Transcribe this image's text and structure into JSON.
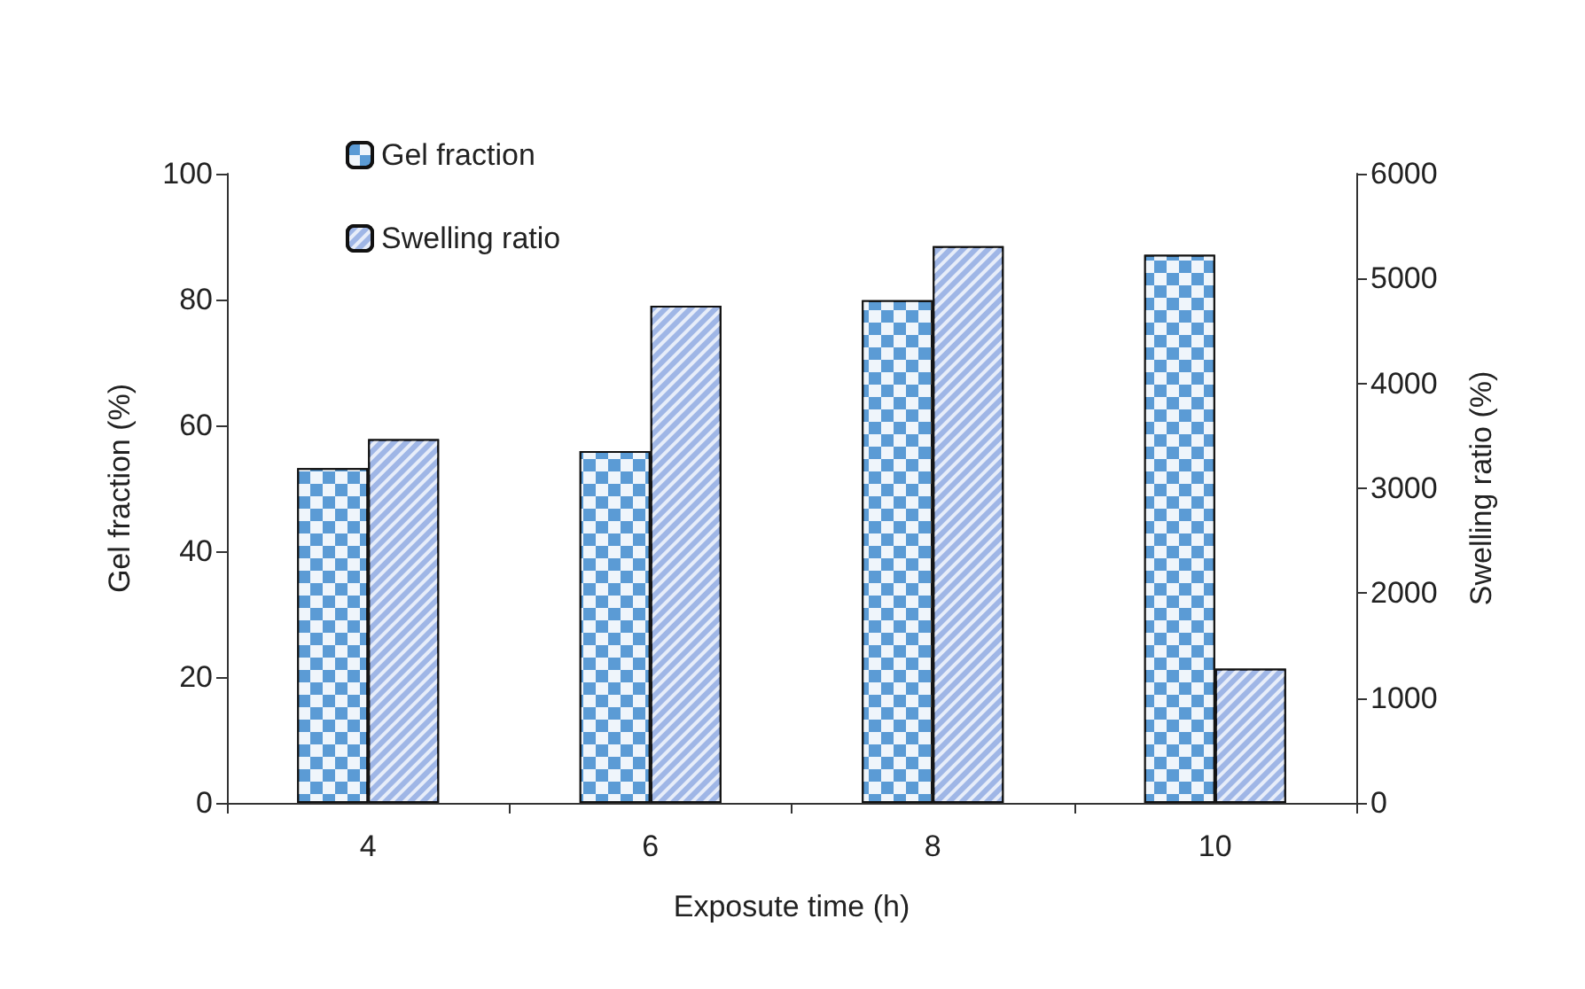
{
  "chart_data": {
    "type": "bar",
    "xlabel": "Exposute time (h)",
    "ylabel": "Gel fraction (%)",
    "y2label": "Swelling ratio (%)",
    "categories": [
      "4",
      "6",
      "8",
      "10"
    ],
    "series": [
      {
        "name": "Gel fraction",
        "color": "#5b9bd5",
        "values": [
          53.2,
          55.9,
          79.9,
          87.1
        ]
      },
      {
        "name": "Swelling ratio",
        "color": "#9fb6e6",
        "values": [
          3470,
          4740,
          5310,
          1280
        ],
        "axis": "y2"
      }
    ],
    "ylim": [
      0,
      100
    ],
    "yticks": [
      0,
      20,
      40,
      60,
      80,
      100
    ],
    "y2lim": [
      0,
      6000
    ],
    "y2ticks": [
      0,
      1000,
      2000,
      3000,
      4000,
      5000,
      6000
    ],
    "grid": false,
    "legend": "top left"
  }
}
